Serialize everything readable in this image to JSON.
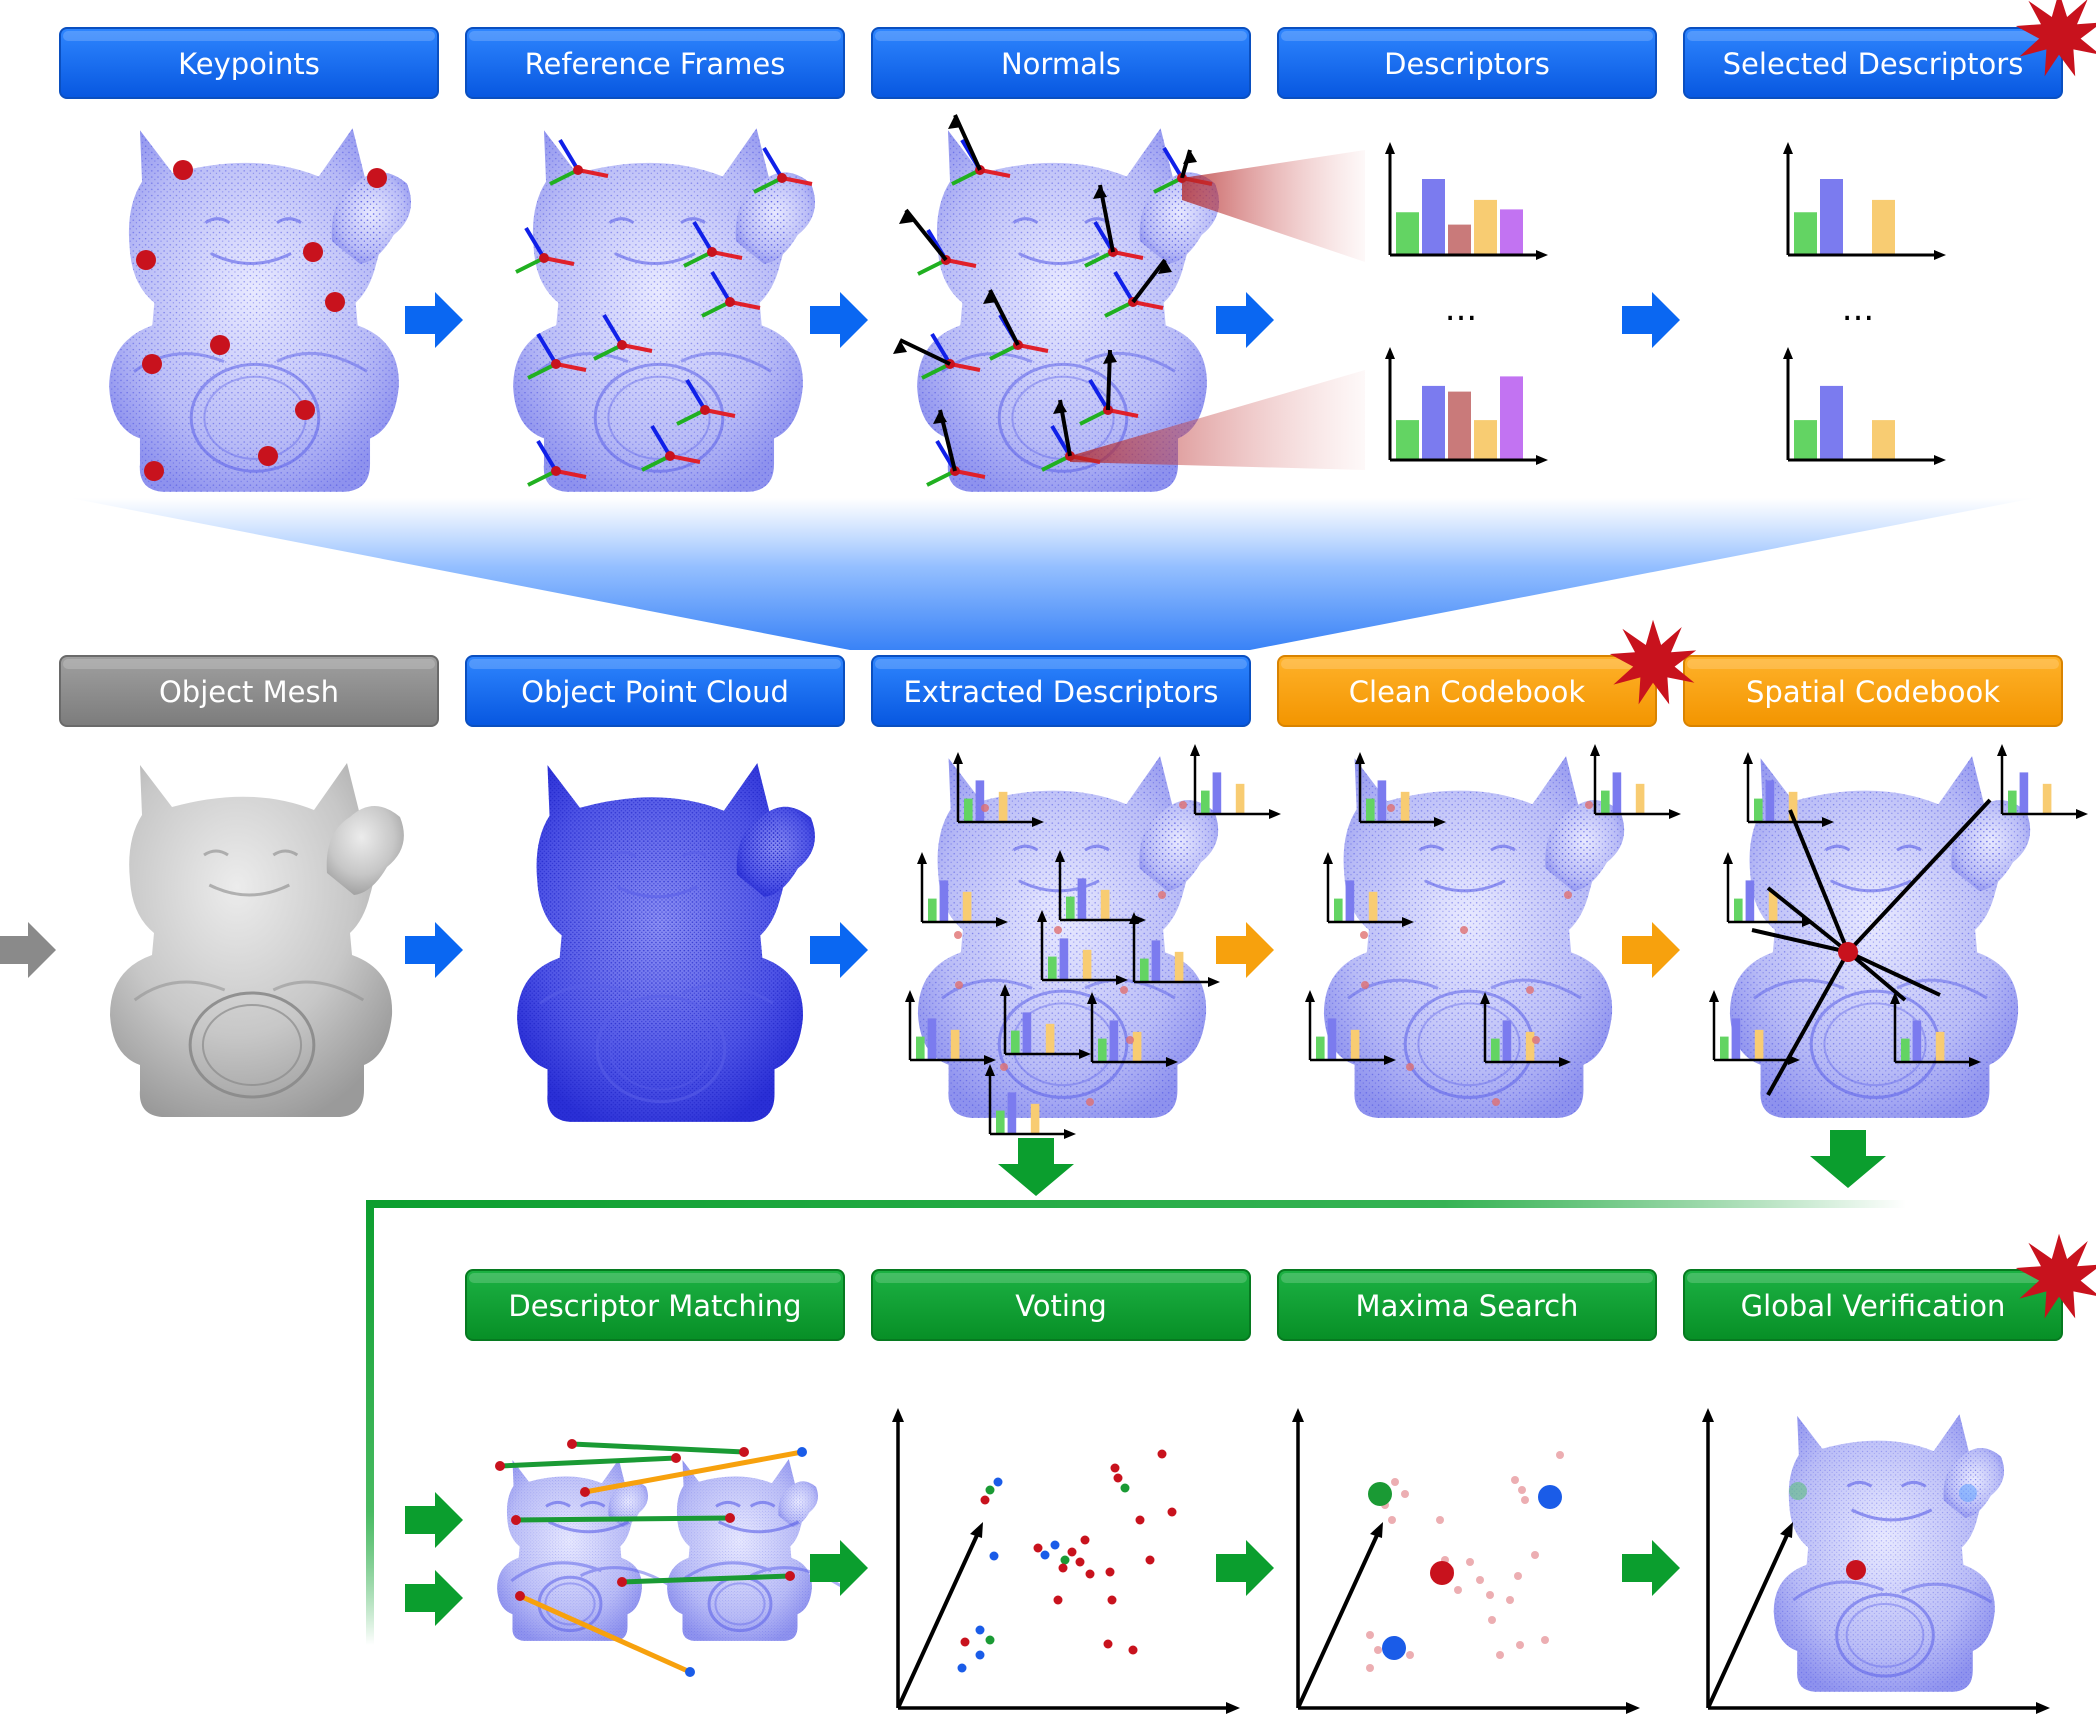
{
  "colors": {
    "blue": "#0a67f2",
    "blue_light": "#5aa0ff",
    "gray": "#8a8a8a",
    "orange": "#f7a10d",
    "green": "#0b9e2e",
    "star": "#c8121d",
    "keypoint": "#c8121d",
    "cloud": "#6a6cf0",
    "mesh": "#bdbdbd",
    "bar_colors": [
      "#63d463",
      "#7b7bef",
      "#c97a7a",
      "#f8cc72",
      "#c273f2"
    ]
  },
  "row1": {
    "steps": [
      {
        "label": "Keypoints",
        "color": "blue"
      },
      {
        "label": "Reference Frames",
        "color": "blue"
      },
      {
        "label": "Normals",
        "color": "blue"
      },
      {
        "label": "Descriptors",
        "color": "blue"
      },
      {
        "label": "Selected Descriptors",
        "color": "blue",
        "starred": true
      }
    ],
    "descriptor_ellipsis": "...",
    "selected_ellipsis": "...",
    "hist_full": [
      0.45,
      0.8,
      0.32,
      0.58,
      0.48
    ],
    "hist_full2": [
      0.42,
      0.78,
      0.72,
      0.42,
      0.88
    ],
    "hist_selected": [
      0.45,
      0.8,
      0,
      0.58,
      0
    ],
    "hist_selected2": [
      0.42,
      0.78,
      0,
      0.42,
      0
    ]
  },
  "row2": {
    "steps": [
      {
        "label": "Object Mesh",
        "color": "gray"
      },
      {
        "label": "Object Point Cloud",
        "color": "blue"
      },
      {
        "label": "Extracted Descriptors",
        "color": "blue"
      },
      {
        "label": "Clean Codebook",
        "color": "orange",
        "starred": true
      },
      {
        "label": "Spatial Codebook",
        "color": "orange"
      }
    ]
  },
  "row3": {
    "steps": [
      {
        "label": "Descriptor Matching",
        "color": "green"
      },
      {
        "label": "Voting",
        "color": "green"
      },
      {
        "label": "Maxima Search",
        "color": "green"
      },
      {
        "label": "Global Verification",
        "color": "green",
        "starred": true
      }
    ]
  },
  "arrows": {
    "row1": "blue",
    "row2": [
      "gray",
      "blue",
      "blue",
      "orange",
      "orange"
    ],
    "row3": "green",
    "down": "green"
  },
  "icons": {
    "step_arrow": "right-arrow-icon",
    "down_arrow": "down-arrow-icon",
    "star": "starburst-icon"
  }
}
